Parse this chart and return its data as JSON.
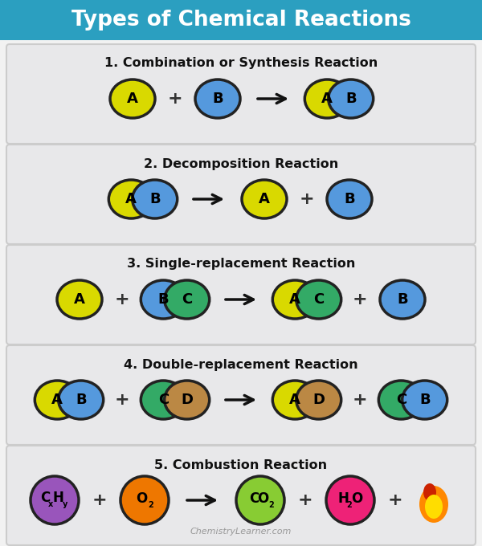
{
  "title": "Types of Chemical Reactions",
  "title_bg": "#2b9fc0",
  "title_color": "#ffffff",
  "bg_color": "#f2f2f2",
  "panel_color": "#e8e8ea",
  "panel_border": "#cccccc",
  "reactions": [
    {
      "label": "1. Combination or Synthesis Reaction",
      "elements": [
        {
          "type": "single",
          "letter": "A",
          "color": "#d9d900",
          "text_color": "#000000"
        },
        {
          "type": "plus"
        },
        {
          "type": "single",
          "letter": "B",
          "color": "#5599dd",
          "text_color": "#000000"
        },
        {
          "type": "arrow"
        },
        {
          "type": "double",
          "letter1": "A",
          "letter2": "B",
          "color1": "#d9d900",
          "color2": "#5599dd",
          "text_color": "#000000"
        }
      ]
    },
    {
      "label": "2. Decomposition Reaction",
      "elements": [
        {
          "type": "double",
          "letter1": "A",
          "letter2": "B",
          "color1": "#d9d900",
          "color2": "#5599dd",
          "text_color": "#000000"
        },
        {
          "type": "arrow"
        },
        {
          "type": "single",
          "letter": "A",
          "color": "#d9d900",
          "text_color": "#000000"
        },
        {
          "type": "plus"
        },
        {
          "type": "single",
          "letter": "B",
          "color": "#5599dd",
          "text_color": "#000000"
        }
      ]
    },
    {
      "label": "3. Single-replacement Reaction",
      "elements": [
        {
          "type": "single",
          "letter": "A",
          "color": "#d9d900",
          "text_color": "#000000"
        },
        {
          "type": "plus"
        },
        {
          "type": "double",
          "letter1": "B",
          "letter2": "C",
          "color1": "#5599dd",
          "color2": "#33aa66",
          "text_color": "#000000"
        },
        {
          "type": "arrow"
        },
        {
          "type": "double",
          "letter1": "A",
          "letter2": "C",
          "color1": "#d9d900",
          "color2": "#33aa66",
          "text_color": "#000000"
        },
        {
          "type": "plus"
        },
        {
          "type": "single",
          "letter": "B",
          "color": "#5599dd",
          "text_color": "#000000"
        }
      ]
    },
    {
      "label": "4. Double-replacement Reaction",
      "elements": [
        {
          "type": "double",
          "letter1": "A",
          "letter2": "B",
          "color1": "#d9d900",
          "color2": "#5599dd",
          "text_color": "#000000"
        },
        {
          "type": "plus"
        },
        {
          "type": "double",
          "letter1": "C",
          "letter2": "D",
          "color1": "#33aa66",
          "color2": "#bb8844",
          "text_color": "#000000"
        },
        {
          "type": "arrow"
        },
        {
          "type": "double",
          "letter1": "A",
          "letter2": "D",
          "color1": "#d9d900",
          "color2": "#bb8844",
          "text_color": "#000000"
        },
        {
          "type": "plus"
        },
        {
          "type": "double",
          "letter1": "C",
          "letter2": "B",
          "color1": "#33aa66",
          "color2": "#5599dd",
          "text_color": "#000000"
        }
      ]
    },
    {
      "label": "5. Combustion Reaction",
      "elements": [
        {
          "type": "chem",
          "formula": "CxHy",
          "color": "#9955bb",
          "text_color": "#000000"
        },
        {
          "type": "plus"
        },
        {
          "type": "chem",
          "formula": "O2",
          "color": "#ee7700",
          "text_color": "#000000"
        },
        {
          "type": "arrow"
        },
        {
          "type": "chem",
          "formula": "CO2",
          "color": "#88cc33",
          "text_color": "#000000"
        },
        {
          "type": "plus"
        },
        {
          "type": "chem",
          "formula": "H2O",
          "color": "#ee2277",
          "text_color": "#000000"
        },
        {
          "type": "plus"
        },
        {
          "type": "flame"
        }
      ]
    }
  ],
  "watermark": "ChemistryLearner.com"
}
